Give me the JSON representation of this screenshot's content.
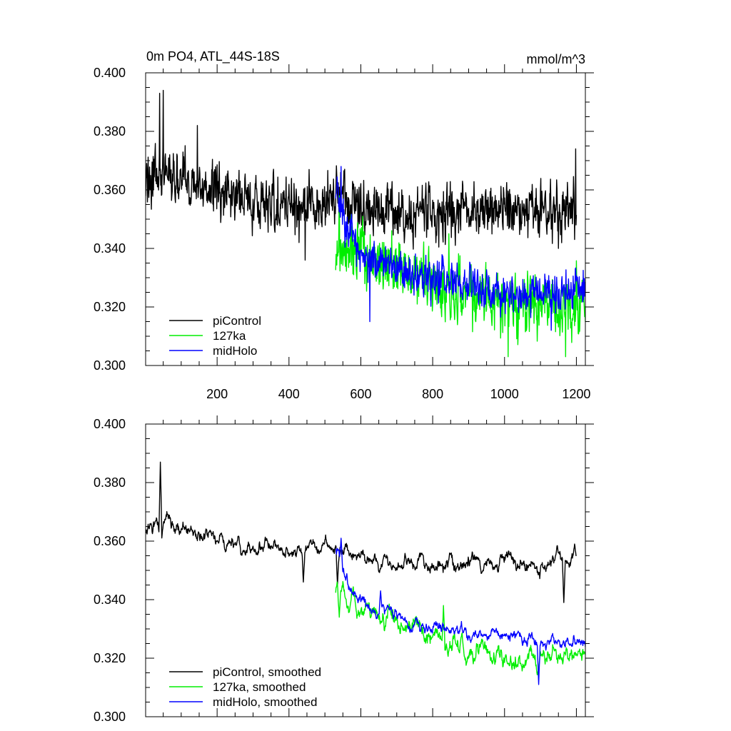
{
  "chart_data": [
    {
      "type": "line",
      "title": "0m PO4, ATL_44S-18S",
      "units": "mmol/m^3",
      "xlabel": "",
      "ylabel": "",
      "xlim": [
        1,
        1225
      ],
      "ylim": [
        0.3,
        0.4
      ],
      "xticks": [
        200,
        400,
        600,
        800,
        1000,
        1200
      ],
      "xtick_labels": [
        "200",
        "400",
        "600",
        "800",
        "1000",
        "1200"
      ],
      "yticks": [
        0.3,
        0.32,
        0.34,
        0.36,
        0.38,
        0.4
      ],
      "ytick_labels": [
        "0.300",
        "0.320",
        "0.340",
        "0.360",
        "0.380",
        "0.400"
      ],
      "grid": false,
      "legend": "bottom-left",
      "smoothed": false,
      "series": [
        {
          "name": "piControl",
          "color": "#000000",
          "x_range": [
            1,
            1200
          ],
          "trend": [
            [
              1,
              0.363
            ],
            [
              60,
              0.366
            ],
            [
              150,
              0.362
            ],
            [
              300,
              0.356
            ],
            [
              450,
              0.355
            ],
            [
              530,
              0.358
            ],
            [
              600,
              0.354
            ],
            [
              700,
              0.352
            ],
            [
              800,
              0.352
            ],
            [
              900,
              0.352
            ],
            [
              1000,
              0.354
            ],
            [
              1100,
              0.352
            ],
            [
              1200,
              0.354
            ]
          ],
          "noise": 0.008,
          "events": [
            [
              40,
              0.393
            ],
            [
              50,
              0.394
            ],
            [
              145,
              0.382
            ],
            [
              428,
              0.342
            ],
            [
              445,
              0.336
            ],
            [
              1150,
              0.34
            ],
            [
              1198,
              0.374
            ]
          ]
        },
        {
          "name": "127ka",
          "color": "#00ee00",
          "x_range": [
            530,
            1225
          ],
          "trend": [
            [
              530,
              0.342
            ],
            [
              600,
              0.338
            ],
            [
              700,
              0.332
            ],
            [
              800,
              0.328
            ],
            [
              900,
              0.324
            ],
            [
              1000,
              0.32
            ],
            [
              1100,
              0.32
            ],
            [
              1225,
              0.321
            ]
          ],
          "noise": 0.009,
          "events": [
            [
              540,
              0.358
            ],
            [
              845,
              0.345
            ],
            [
              1010,
              0.303
            ],
            [
              1170,
              0.303
            ]
          ]
        },
        {
          "name": "midHolo",
          "color": "#0000ff",
          "x_range": [
            530,
            1225
          ],
          "trend": [
            [
              530,
              0.358
            ],
            [
              560,
              0.346
            ],
            [
              600,
              0.338
            ],
            [
              700,
              0.333
            ],
            [
              800,
              0.33
            ],
            [
              900,
              0.327
            ],
            [
              1000,
              0.325
            ],
            [
              1100,
              0.325
            ],
            [
              1225,
              0.326
            ]
          ],
          "noise": 0.006,
          "events": [
            [
              545,
              0.368
            ],
            [
              625,
              0.315
            ],
            [
              1130,
              0.312
            ]
          ]
        }
      ]
    },
    {
      "type": "line",
      "title": "",
      "xlabel": "",
      "ylabel": "",
      "xlim": [
        1,
        1225
      ],
      "ylim": [
        0.3,
        0.4
      ],
      "xticks": [
        200,
        400,
        600,
        800,
        1000,
        1200
      ],
      "xtick_labels": [],
      "yticks": [
        0.3,
        0.32,
        0.34,
        0.36,
        0.38,
        0.4
      ],
      "ytick_labels": [
        "0.300",
        "0.320",
        "0.340",
        "0.360",
        "0.380",
        "0.400"
      ],
      "grid": false,
      "legend": "bottom-left",
      "smoothed": true,
      "series": [
        {
          "name": "piControl, smoothed",
          "color": "#000000",
          "x_range": [
            1,
            1200
          ],
          "trend": [
            [
              1,
              0.362
            ],
            [
              60,
              0.366
            ],
            [
              150,
              0.363
            ],
            [
              300,
              0.356
            ],
            [
              450,
              0.358
            ],
            [
              530,
              0.358
            ],
            [
              600,
              0.353
            ],
            [
              700,
              0.352
            ],
            [
              800,
              0.352
            ],
            [
              900,
              0.352
            ],
            [
              1000,
              0.352
            ],
            [
              1100,
              0.351
            ],
            [
              1200,
              0.356
            ]
          ],
          "noise": 0.003,
          "events": [
            [
              42,
              0.387
            ],
            [
              200,
              0.36
            ],
            [
              440,
              0.346
            ],
            [
              535,
              0.345
            ],
            [
              1165,
              0.339
            ],
            [
              1195,
              0.359
            ]
          ]
        },
        {
          "name": "127ka, smoothed",
          "color": "#00ee00",
          "x_range": [
            530,
            1225
          ],
          "trend": [
            [
              530,
              0.344
            ],
            [
              600,
              0.336
            ],
            [
              700,
              0.331
            ],
            [
              800,
              0.327
            ],
            [
              900,
              0.323
            ],
            [
              1000,
              0.319
            ],
            [
              1100,
              0.319
            ],
            [
              1225,
              0.322
            ]
          ],
          "noise": 0.004,
          "events": [
            [
              540,
              0.334
            ],
            [
              830,
              0.338
            ],
            [
              1010,
              0.318
            ]
          ]
        },
        {
          "name": "midHolo, smoothed",
          "color": "#0000ff",
          "x_range": [
            530,
            1225
          ],
          "trend": [
            [
              530,
              0.358
            ],
            [
              560,
              0.347
            ],
            [
              600,
              0.338
            ],
            [
              700,
              0.334
            ],
            [
              800,
              0.33
            ],
            [
              900,
              0.328
            ],
            [
              1000,
              0.327
            ],
            [
              1100,
              0.326
            ],
            [
              1225,
              0.326
            ]
          ],
          "noise": 0.0025,
          "events": [
            [
              545,
              0.361
            ],
            [
              655,
              0.343
            ],
            [
              1095,
              0.311
            ]
          ]
        }
      ]
    }
  ]
}
